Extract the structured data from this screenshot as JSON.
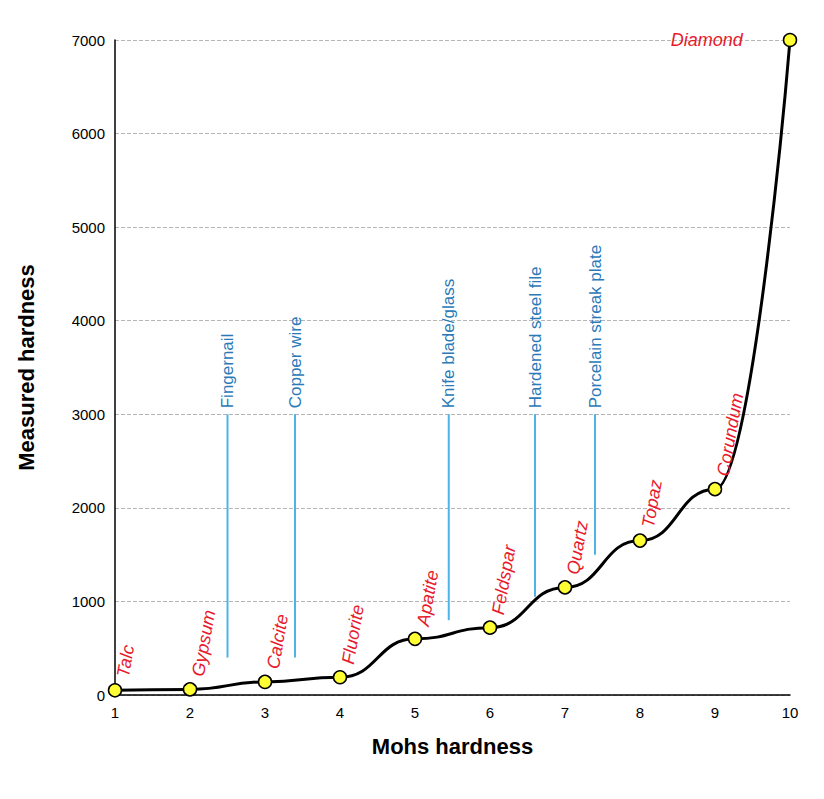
{
  "chart_data": {
    "type": "line",
    "xlabel": "Mohs hardness",
    "ylabel": "Measured hardness",
    "x": [
      1,
      2,
      3,
      4,
      5,
      6,
      7,
      8,
      9,
      10
    ],
    "values": [
      50,
      60,
      140,
      190,
      600,
      720,
      1150,
      1650,
      2200,
      7000
    ],
    "point_labels": [
      "Talc",
      "Gypsum",
      "Calcite",
      "Fluorite",
      "Apatite",
      "Feldspar",
      "Quartz",
      "Topaz",
      "Corundum",
      "Diamond"
    ],
    "color": "#000000",
    "marker": "circle",
    "line_style": "smooth",
    "xlim": [
      1,
      10
    ],
    "xticks": [
      1,
      2,
      3,
      4,
      5,
      6,
      7,
      8,
      9,
      10
    ],
    "ylim": [
      0,
      7000
    ],
    "yticks": [
      0,
      1000,
      2000,
      3000,
      4000,
      5000,
      6000,
      7000
    ],
    "grid": "y",
    "references": [
      {
        "label": "Fingernail",
        "x": 2.5,
        "y": [
          400,
          3000
        ]
      },
      {
        "label": "Copper wire",
        "x": 3.4,
        "y": [
          400,
          3000
        ]
      },
      {
        "label": "Knife blade/glass",
        "x": 5.45,
        "y": [
          800,
          3000
        ]
      },
      {
        "label": "Hardened steel file",
        "x": 6.6,
        "y": [
          1050,
          3000
        ]
      },
      {
        "label": "Porcelain streak plate",
        "x": 7.4,
        "y": [
          1500,
          3000
        ]
      }
    ]
  }
}
